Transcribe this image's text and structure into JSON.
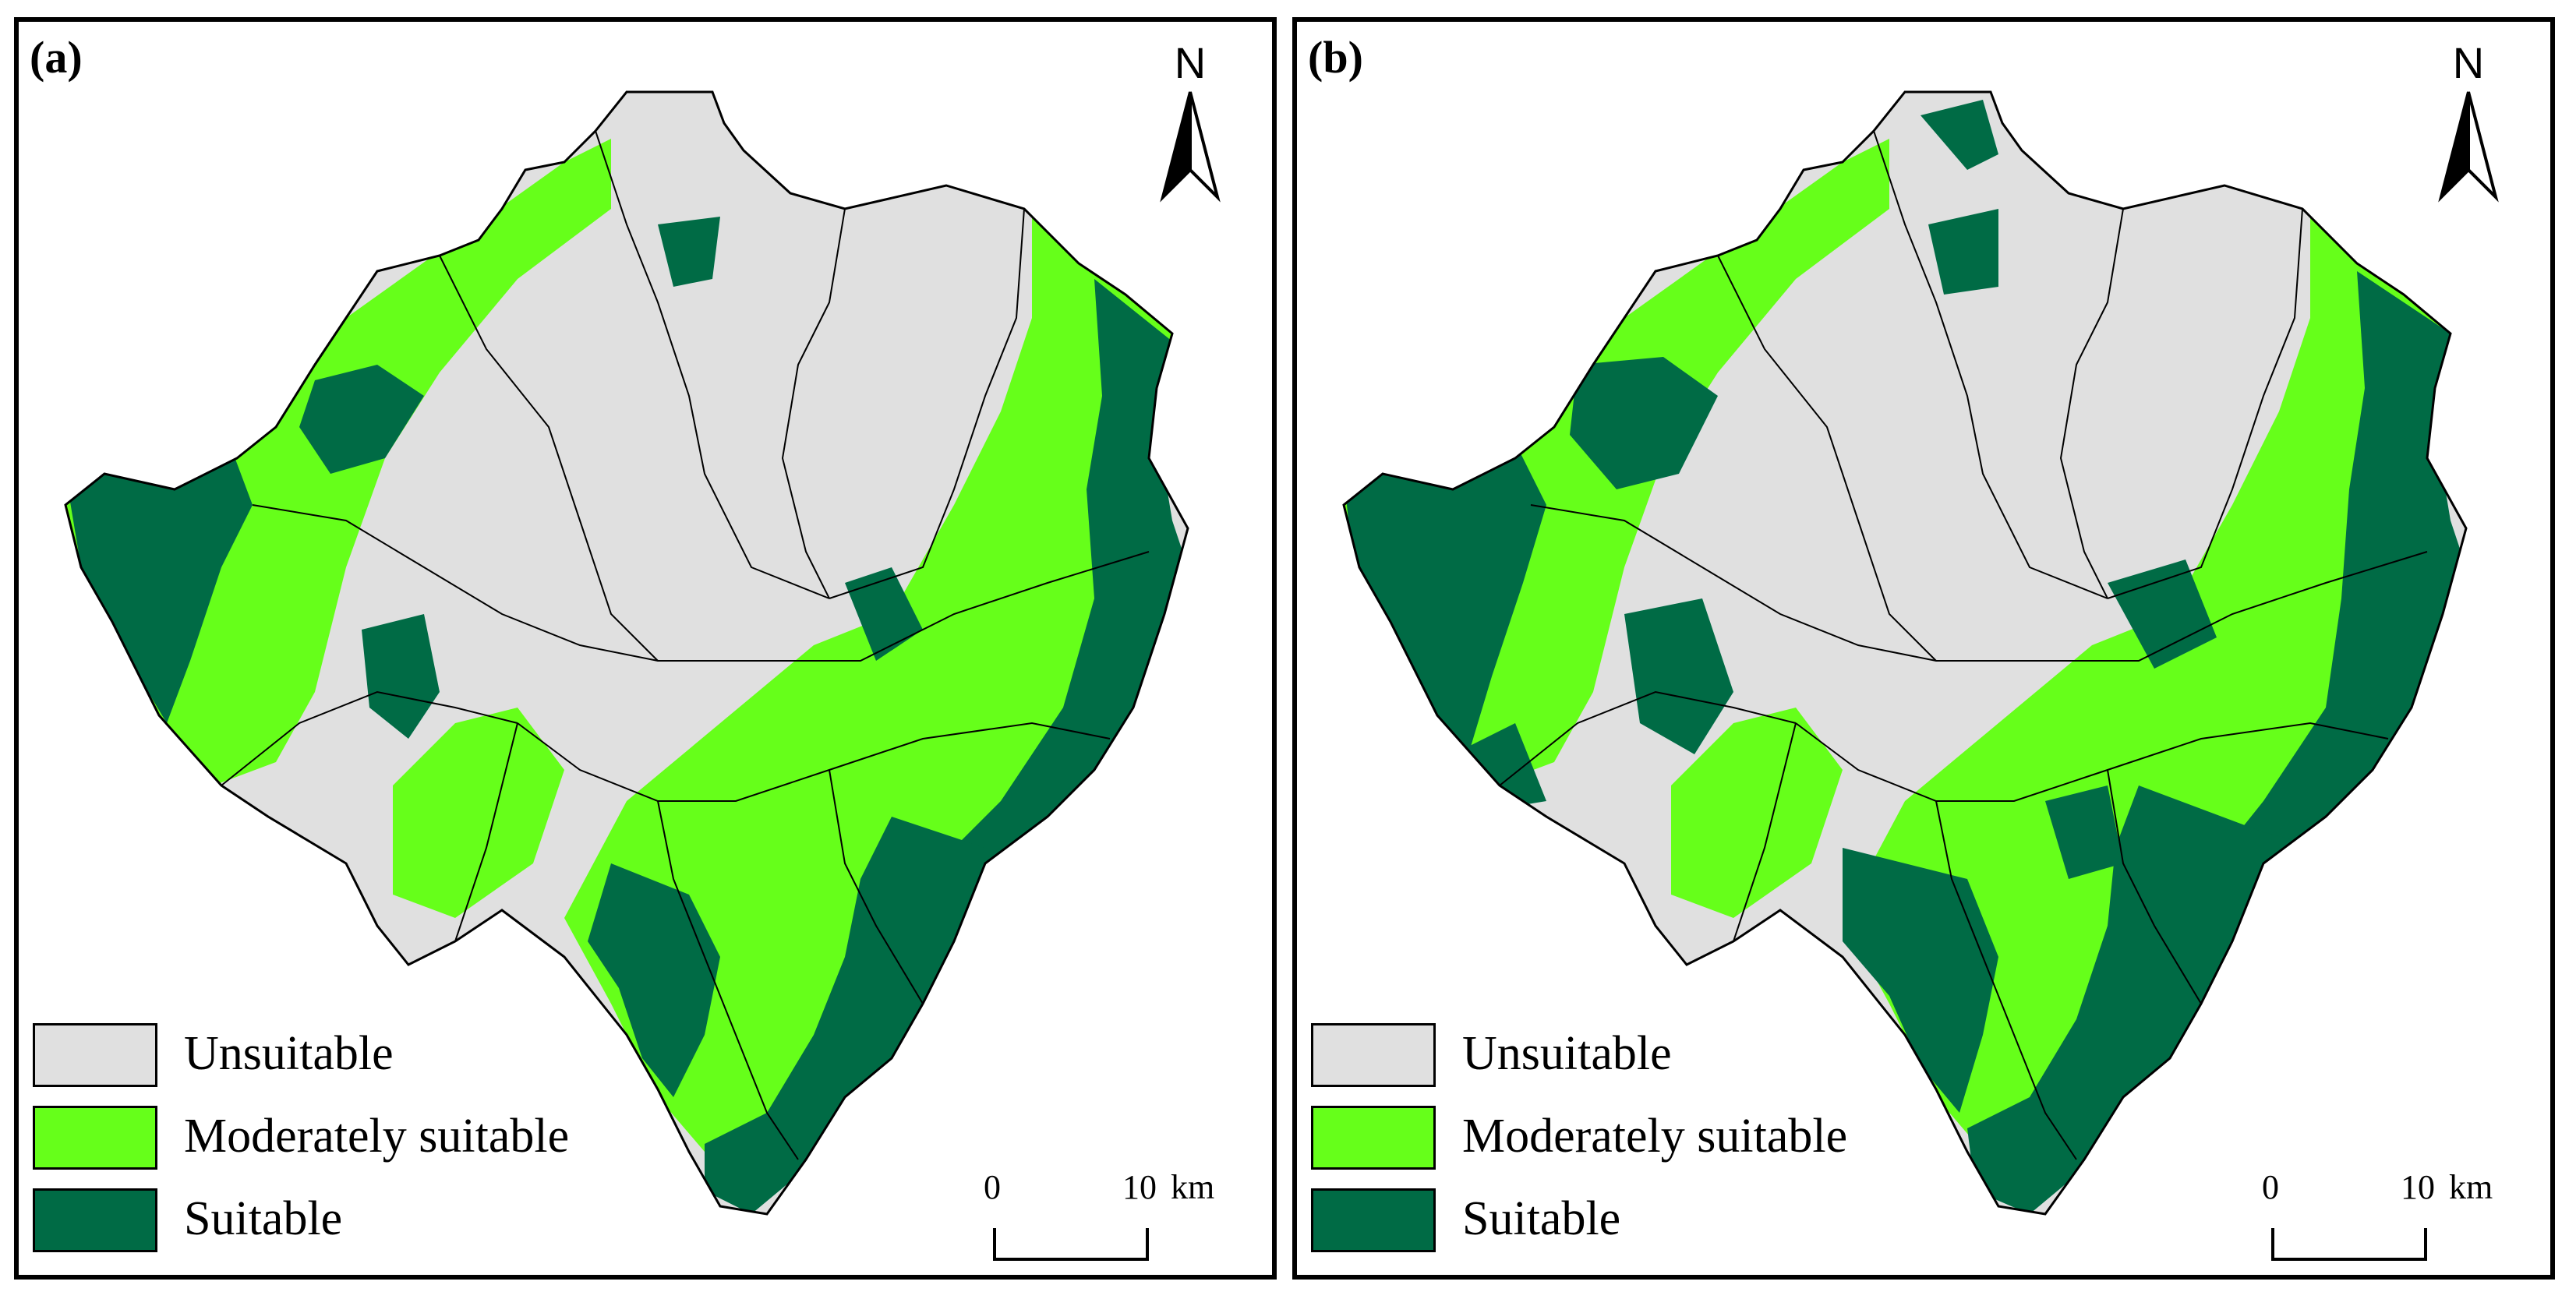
{
  "panels": [
    {
      "label": "(a)"
    },
    {
      "label": "(b)"
    }
  ],
  "north_arrow": {
    "letter": "N"
  },
  "legend": {
    "items": [
      {
        "label": "Unsuitable",
        "color": "#e0e0e0"
      },
      {
        "label": "Moderately suitable",
        "color": "#66ff1a"
      },
      {
        "label": "Suitable",
        "color": "#006b45"
      }
    ]
  },
  "scale_bar": {
    "start": "0",
    "end": "10",
    "unit": "km"
  },
  "colors": {
    "unsuitable": "#e0e0e0",
    "moderate": "#66ff1a",
    "suitable": "#006b45",
    "border": "#000000"
  }
}
